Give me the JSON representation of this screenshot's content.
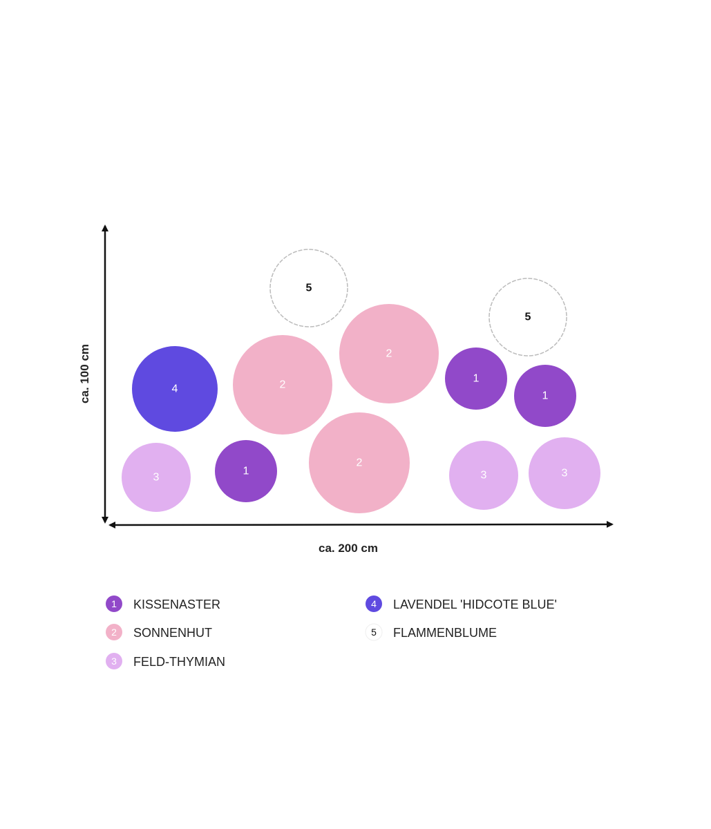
{
  "axes": {
    "vertical_label": "ca. 100 cm",
    "horizontal_label": "ca. 200 cm"
  },
  "colors": {
    "kissenaster": "#9149c9",
    "sonnenhut": "#f2b1c8",
    "feld_thymian": "#e1b0f0",
    "lavendel": "#5f4ae0",
    "flammenblume": "#ffffff"
  },
  "legend": {
    "items": [
      {
        "number": "1",
        "label": "KISSENASTER",
        "color": "#9149c9"
      },
      {
        "number": "2",
        "label": "SONNENHUT",
        "color": "#f2b1c8"
      },
      {
        "number": "3",
        "label": "FELD-THYMIAN",
        "color": "#e1b0f0"
      },
      {
        "number": "4",
        "label": "LAVENDEL 'HIDCOTE BLUE'",
        "color": "#5f4ae0"
      },
      {
        "number": "5",
        "label": "FLAMMENBLUME",
        "color": "#ffffff"
      }
    ]
  }
}
